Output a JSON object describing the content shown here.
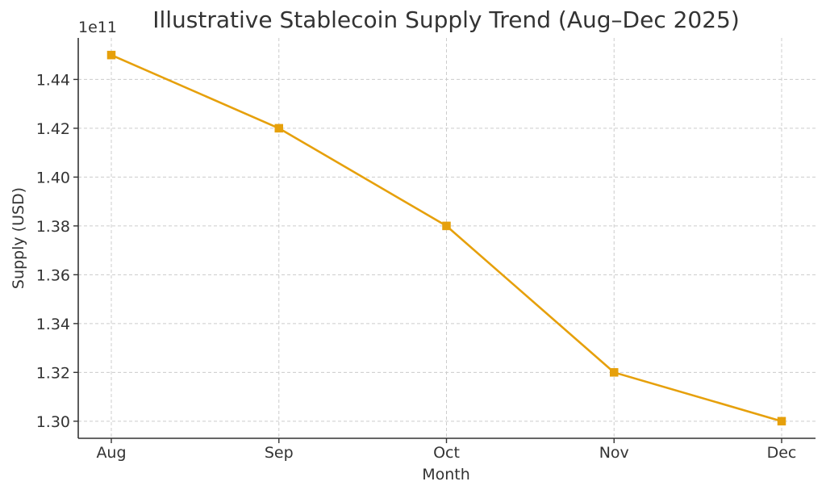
{
  "chart_data": {
    "type": "line",
    "title": "Illustrative Stablecoin Supply Trend (Aug–Dec 2025)",
    "xlabel": "Month",
    "ylabel": "Supply (USD)",
    "y_offset_label": "1e11",
    "categories": [
      "Aug",
      "Sep",
      "Oct",
      "Nov",
      "Dec"
    ],
    "series": [
      {
        "values": [
          145000000000,
          142000000000,
          138000000000,
          132000000000,
          130000000000
        ],
        "color": "#e6a00b",
        "marker": "square"
      }
    ],
    "yticks": [
      1.3,
      1.32,
      1.34,
      1.36,
      1.38,
      1.4,
      1.42,
      1.44
    ],
    "ytick_labels": [
      "1.30",
      "1.32",
      "1.34",
      "1.36",
      "1.38",
      "1.40",
      "1.42",
      "1.44"
    ],
    "ylim": [
      1.293,
      1.457
    ],
    "y_scale_factor": 100000000000,
    "grid": true,
    "legend": "none"
  }
}
